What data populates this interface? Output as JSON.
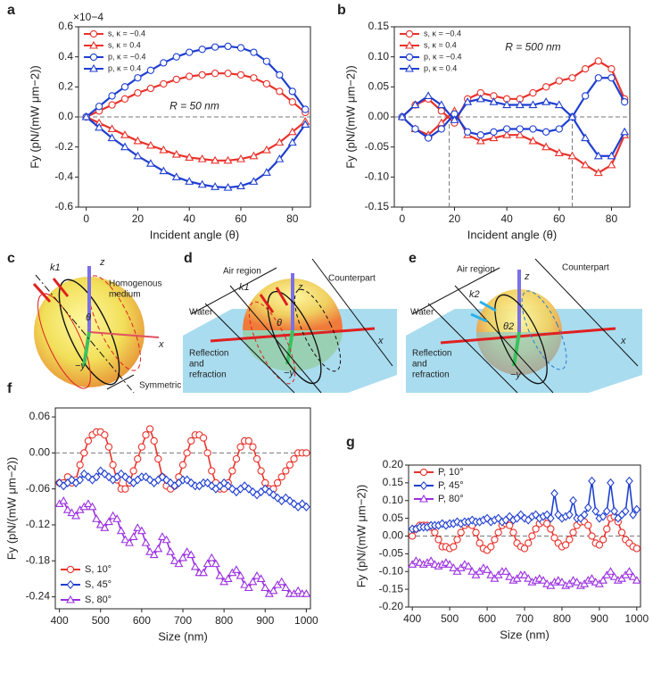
{
  "chart_data": [
    {
      "type": "line",
      "panel": "a",
      "multiplier": "×10−4",
      "annotation": "R = 50 nm",
      "xlabel": "Incident angle (θ)",
      "ylabel": "Fy (pN/(mW μm−2))",
      "x": [
        0,
        5,
        10,
        15,
        20,
        25,
        30,
        35,
        40,
        45,
        50,
        55,
        60,
        65,
        70,
        75,
        80,
        85
      ],
      "xlim": [
        -3,
        87
      ],
      "xticks": [
        0,
        20,
        40,
        60,
        80
      ],
      "ylim": [
        -0.6,
        0.6
      ],
      "yticks": [
        0.6,
        0.4,
        0.2,
        {
          "value": 0,
          "label": "0.0"
        },
        -0.2,
        -0.4,
        -0.6
      ],
      "zero_line": true,
      "legend": "upper left",
      "series": [
        {
          "name": "s, κ = −0.4",
          "color": "#e8322b",
          "marker": "circle",
          "values": [
            0,
            0.04,
            0.08,
            0.12,
            0.16,
            0.19,
            0.22,
            0.25,
            0.27,
            0.28,
            0.29,
            0.29,
            0.28,
            0.26,
            0.22,
            0.17,
            0.1,
            0.03
          ]
        },
        {
          "name": "s, κ = 0.4",
          "color": "#e8322b",
          "marker": "triangle",
          "values": [
            0,
            -0.04,
            -0.08,
            -0.12,
            -0.16,
            -0.19,
            -0.22,
            -0.25,
            -0.27,
            -0.28,
            -0.29,
            -0.29,
            -0.28,
            -0.26,
            -0.22,
            -0.17,
            -0.1,
            -0.03
          ]
        },
        {
          "name": "p, κ = −0.4",
          "color": "#1f3fd0",
          "marker": "circle",
          "values": [
            0,
            0.07,
            0.14,
            0.2,
            0.26,
            0.31,
            0.36,
            0.4,
            0.43,
            0.45,
            0.465,
            0.47,
            0.46,
            0.43,
            0.37,
            0.28,
            0.17,
            0.05
          ]
        },
        {
          "name": "p, κ = 0.4",
          "color": "#1f3fd0",
          "marker": "triangle",
          "values": [
            0,
            -0.07,
            -0.14,
            -0.2,
            -0.26,
            -0.31,
            -0.36,
            -0.4,
            -0.43,
            -0.45,
            -0.465,
            -0.47,
            -0.46,
            -0.43,
            -0.37,
            -0.28,
            -0.17,
            -0.05
          ]
        }
      ]
    },
    {
      "type": "line",
      "panel": "b",
      "annotation": "R = 500 nm",
      "xlabel": "Incident angle (θ)",
      "ylabel": "Fy (pN/(mW μm−2))",
      "x": [
        0,
        5,
        10,
        15,
        20,
        25,
        30,
        35,
        40,
        45,
        50,
        55,
        60,
        65,
        70,
        75,
        80,
        85
      ],
      "xlim": [
        -3,
        87
      ],
      "xticks": [
        0,
        20,
        40,
        60,
        80
      ],
      "ylim": [
        -0.15,
        0.15
      ],
      "yticks": [
        0.15,
        {
          "value": 0.1,
          "label": "0.10"
        },
        0.05,
        {
          "value": 0,
          "label": "0.00"
        },
        -0.05,
        {
          "value": -0.1,
          "label": "-0.10"
        },
        -0.15
      ],
      "zero_line": true,
      "vlines": [
        18,
        65
      ],
      "legend": "upper left",
      "series": [
        {
          "name": "s, κ = −0.4",
          "color": "#e8322b",
          "marker": "circle",
          "values": [
            0,
            0.02,
            0.03,
            0.01,
            -0.01,
            0.03,
            0.04,
            0.035,
            0.03,
            0.03,
            0.04,
            0.05,
            0.06,
            0.065,
            0.08,
            0.093,
            0.08,
            0.03
          ]
        },
        {
          "name": "s, κ = 0.4",
          "color": "#e8322b",
          "marker": "triangle",
          "values": [
            0,
            -0.02,
            -0.03,
            -0.01,
            0.01,
            -0.03,
            -0.04,
            -0.035,
            -0.03,
            -0.03,
            -0.04,
            -0.05,
            -0.06,
            -0.065,
            -0.08,
            -0.093,
            -0.08,
            -0.03
          ]
        },
        {
          "name": "p, κ = −0.4",
          "color": "#1f3fd0",
          "marker": "circle",
          "values": [
            0,
            -0.02,
            -0.035,
            -0.02,
            0.005,
            -0.025,
            -0.03,
            -0.025,
            -0.02,
            -0.02,
            -0.02,
            -0.025,
            -0.02,
            0,
            0.035,
            0.065,
            0.065,
            0.025
          ]
        },
        {
          "name": "p, κ = 0.4",
          "color": "#1f3fd0",
          "marker": "triangle",
          "values": [
            0,
            0.02,
            0.035,
            0.02,
            -0.005,
            0.025,
            0.03,
            0.025,
            0.02,
            0.02,
            0.02,
            0.025,
            0.02,
            0,
            -0.035,
            -0.065,
            -0.065,
            -0.025
          ]
        }
      ]
    },
    {
      "type": "line",
      "panel": "f",
      "xlabel": "Size (nm)",
      "ylabel": "Fy (pN/(mW μm−2))",
      "x": [
        400,
        410,
        420,
        430,
        440,
        450,
        460,
        470,
        480,
        490,
        500,
        510,
        520,
        530,
        540,
        550,
        560,
        570,
        580,
        590,
        600,
        610,
        620,
        630,
        640,
        650,
        660,
        670,
        680,
        690,
        700,
        710,
        720,
        730,
        740,
        750,
        760,
        770,
        780,
        790,
        800,
        810,
        820,
        830,
        840,
        850,
        860,
        870,
        880,
        890,
        900,
        910,
        920,
        930,
        940,
        950,
        960,
        970,
        980,
        990,
        1000
      ],
      "xlim": [
        390,
        1010
      ],
      "xticks": [
        400,
        500,
        600,
        700,
        800,
        900,
        1000
      ],
      "ylim": [
        -0.26,
        0.075
      ],
      "yticks": [
        0.06,
        {
          "value": 0,
          "label": "0.00"
        },
        -0.06,
        -0.12,
        -0.18,
        -0.24
      ],
      "zero_line": true,
      "legend": "lower left",
      "series": [
        {
          "name": "S, 10°",
          "color": "#e8322b",
          "marker": "circle",
          "values": [
            -0.05,
            -0.05,
            -0.04,
            -0.05,
            -0.045,
            -0.02,
            0,
            0.02,
            0.03,
            0.035,
            0.035,
            0.03,
            0.01,
            -0.02,
            -0.045,
            -0.06,
            -0.06,
            -0.05,
            -0.03,
            -0.01,
            0.01,
            0.03,
            0.04,
            0.02,
            -0.01,
            -0.04,
            -0.055,
            -0.06,
            -0.055,
            -0.04,
            -0.02,
            0,
            0.02,
            0.03,
            0.03,
            0.025,
            0,
            -0.03,
            -0.05,
            -0.06,
            -0.06,
            -0.05,
            -0.03,
            -0.01,
            0.01,
            0.02,
            0.02,
            0.01,
            -0.01,
            -0.03,
            -0.05,
            -0.06,
            -0.06,
            -0.05,
            -0.04,
            -0.03,
            -0.02,
            -0.01,
            0,
            0,
            0
          ]
        },
        {
          "name": "S, 45°",
          "color": "#1f3fd0",
          "marker": "diamond",
          "values": [
            -0.05,
            -0.055,
            -0.05,
            -0.045,
            -0.05,
            -0.045,
            -0.035,
            -0.04,
            -0.045,
            -0.04,
            -0.03,
            -0.035,
            -0.04,
            -0.045,
            -0.04,
            -0.035,
            -0.04,
            -0.045,
            -0.05,
            -0.045,
            -0.04,
            -0.04,
            -0.045,
            -0.05,
            -0.045,
            -0.04,
            -0.045,
            -0.05,
            -0.055,
            -0.05,
            -0.045,
            -0.045,
            -0.05,
            -0.055,
            -0.055,
            -0.05,
            -0.05,
            -0.055,
            -0.06,
            -0.055,
            -0.05,
            -0.055,
            -0.06,
            -0.065,
            -0.06,
            -0.055,
            -0.06,
            -0.065,
            -0.07,
            -0.065,
            -0.06,
            -0.065,
            -0.07,
            -0.075,
            -0.08,
            -0.075,
            -0.08,
            -0.085,
            -0.09,
            -0.085,
            -0.09
          ]
        },
        {
          "name": "S, 80°",
          "color": "#9a30e0",
          "marker": "triangle",
          "values": [
            -0.085,
            -0.08,
            -0.095,
            -0.1,
            -0.105,
            -0.095,
            -0.09,
            -0.085,
            -0.09,
            -0.11,
            -0.12,
            -0.125,
            -0.115,
            -0.105,
            -0.11,
            -0.13,
            -0.145,
            -0.15,
            -0.14,
            -0.125,
            -0.13,
            -0.15,
            -0.165,
            -0.17,
            -0.16,
            -0.14,
            -0.145,
            -0.165,
            -0.18,
            -0.185,
            -0.175,
            -0.165,
            -0.17,
            -0.19,
            -0.2,
            -0.2,
            -0.185,
            -0.175,
            -0.185,
            -0.205,
            -0.215,
            -0.21,
            -0.2,
            -0.195,
            -0.205,
            -0.22,
            -0.225,
            -0.215,
            -0.205,
            -0.21,
            -0.225,
            -0.235,
            -0.23,
            -0.22,
            -0.215,
            -0.225,
            -0.235,
            -0.235,
            -0.23,
            -0.235,
            -0.235
          ]
        }
      ]
    },
    {
      "type": "line",
      "panel": "g",
      "xlabel": "Size (nm)",
      "ylabel": "Fy (pN/(mW μm−2))",
      "x": [
        400,
        410,
        420,
        430,
        440,
        450,
        460,
        470,
        480,
        490,
        500,
        510,
        520,
        530,
        540,
        550,
        560,
        570,
        580,
        590,
        600,
        610,
        620,
        630,
        640,
        650,
        660,
        670,
        680,
        690,
        700,
        710,
        720,
        730,
        740,
        750,
        760,
        770,
        780,
        790,
        800,
        810,
        820,
        830,
        840,
        850,
        860,
        870,
        880,
        890,
        900,
        910,
        920,
        930,
        940,
        950,
        960,
        970,
        980,
        990,
        1000
      ],
      "xlim": [
        390,
        1010
      ],
      "xticks": [
        400,
        500,
        600,
        700,
        800,
        900,
        1000
      ],
      "ylim": [
        -0.2,
        0.2
      ],
      "yticks": [
        {
          "value": 0.2,
          "label": "0.20"
        },
        0.15,
        {
          "value": 0.1,
          "label": "0.10"
        },
        0.05,
        {
          "value": 0,
          "label": "0.00"
        },
        -0.05,
        {
          "value": -0.1,
          "label": "-0.10"
        },
        -0.15,
        {
          "value": -0.2,
          "label": "-0.20"
        }
      ],
      "zero_line": true,
      "legend": "upper left",
      "series": [
        {
          "name": "P, 10°",
          "color": "#e8322b",
          "marker": "circle",
          "values": [
            0,
            0.02,
            0.03,
            0.03,
            0.03,
            0.025,
            0.01,
            -0.01,
            -0.03,
            -0.03,
            -0.035,
            -0.03,
            -0.01,
            0.01,
            0.03,
            0.035,
            0.03,
            0.01,
            -0.02,
            -0.035,
            -0.04,
            -0.03,
            -0.01,
            0.01,
            0.03,
            0.035,
            0.03,
            0.01,
            -0.02,
            -0.03,
            -0.035,
            -0.02,
            0,
            0.02,
            0.035,
            0.04,
            0.035,
            0.02,
            -0.005,
            -0.02,
            -0.03,
            -0.025,
            -0.01,
            0.01,
            0.03,
            0.04,
            0.04,
            0.03,
            0,
            -0.02,
            -0.025,
            -0.01,
            0.02,
            0.05,
            0.055,
            0.04,
            0.01,
            -0.01,
            -0.02,
            -0.03,
            -0.035
          ]
        },
        {
          "name": "P, 45°",
          "color": "#1f3fd0",
          "marker": "diamond",
          "values": [
            0.02,
            0.02,
            0.025,
            0.025,
            0.025,
            0.03,
            0.03,
            0.03,
            0.035,
            0.03,
            0.035,
            0.035,
            0.04,
            0.035,
            0.04,
            0.04,
            0.045,
            0.04,
            0.04,
            0.045,
            0.05,
            0.04,
            0.045,
            0.05,
            0.04,
            0.045,
            0.055,
            0.045,
            0.05,
            0.06,
            0.05,
            0.045,
            0.055,
            0.06,
            0.05,
            0.055,
            0.06,
            0.05,
            0.12,
            0.06,
            0.05,
            0.055,
            0.06,
            0.1,
            0.05,
            0.05,
            0.06,
            0.08,
            0.155,
            0.07,
            0.05,
            0.055,
            0.07,
            0.15,
            0.07,
            0.05,
            0.06,
            0.07,
            0.155,
            0.06,
            0.075
          ]
        },
        {
          "name": "P, 80°",
          "color": "#9a30e0",
          "marker": "triangle",
          "values": [
            -0.08,
            -0.07,
            -0.075,
            -0.08,
            -0.075,
            -0.07,
            -0.08,
            -0.085,
            -0.08,
            -0.075,
            -0.08,
            -0.09,
            -0.1,
            -0.09,
            -0.08,
            -0.085,
            -0.1,
            -0.11,
            -0.1,
            -0.09,
            -0.095,
            -0.11,
            -0.12,
            -0.11,
            -0.1,
            -0.1,
            -0.115,
            -0.125,
            -0.12,
            -0.11,
            -0.11,
            -0.12,
            -0.13,
            -0.125,
            -0.12,
            -0.125,
            -0.135,
            -0.14,
            -0.13,
            -0.125,
            -0.13,
            -0.14,
            -0.135,
            -0.125,
            -0.13,
            -0.14,
            -0.135,
            -0.125,
            -0.12,
            -0.13,
            -0.135,
            -0.125,
            -0.11,
            -0.1,
            -0.115,
            -0.125,
            -0.12,
            -0.11,
            -0.1,
            -0.115,
            -0.125
          ]
        }
      ]
    }
  ],
  "diagrams": [
    {
      "panel": "c",
      "labels": [
        "k1",
        "z",
        "Homogenous",
        "medium",
        "θ",
        "x",
        "−y",
        "Symmetric"
      ]
    },
    {
      "panel": "d",
      "labels": [
        "Water",
        "Air region",
        "k1",
        "z",
        "Counterpart",
        "θ",
        "x",
        "Reflection",
        "and",
        "refraction",
        "−y"
      ]
    },
    {
      "panel": "e",
      "labels": [
        "Counterpart",
        "z",
        "Air region",
        "k2",
        "Water",
        "θ2",
        "x",
        "Reflection",
        "and",
        "refraction",
        "−y"
      ]
    }
  ]
}
